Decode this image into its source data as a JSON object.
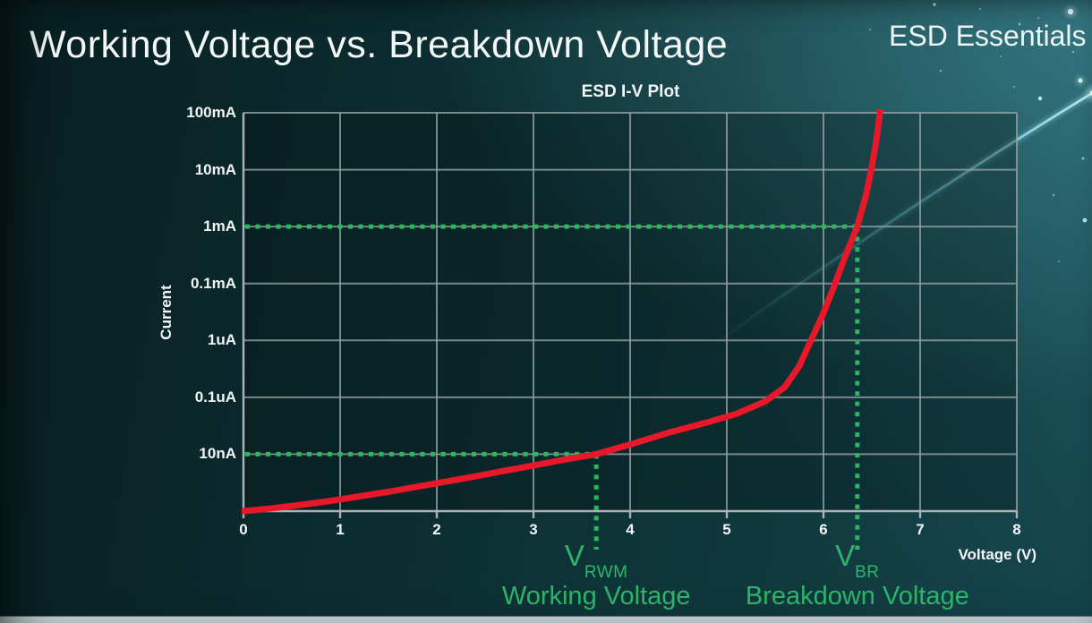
{
  "page": {
    "title": "Working Voltage vs. Breakdown Voltage",
    "brand": "ESD Essentials"
  },
  "colors": {
    "background_teal": "#0f3539",
    "accent_red": "#e8182b",
    "guide_green": "#29b85c",
    "annotation_text_green": "#2eb56a",
    "grid_gray": "#95a1a2",
    "axis_gray": "#aab4b5",
    "swoosh_cyan": "#6fe0ef",
    "text_white": "#f2f6f6",
    "bottom_bar_gray": "#c6d1d3"
  },
  "chart_data": {
    "type": "line",
    "title": "ESD I-V Plot",
    "xlabel": "Voltage (V)",
    "ylabel": "Current",
    "xlim": [
      0,
      8
    ],
    "x_ticks": [
      "0",
      "1",
      "2",
      "3",
      "4",
      "5",
      "6",
      "7",
      "8"
    ],
    "y_ticks_top_to_bottom": [
      "100mA",
      "10mA",
      "1mA",
      "0.1mA",
      "1uA",
      "0.1uA",
      "10nA"
    ],
    "y_scale": "log, one labeled gridline per decade row; row 0 = bottom axis, row 7 = 100mA",
    "grid": true,
    "legend": "none",
    "series": [
      {
        "name": "ESD device I-V curve",
        "color": "#e8182b",
        "points_volts_row": [
          [
            0,
            0
          ],
          [
            0.3,
            0.05
          ],
          [
            0.6,
            0.11
          ],
          [
            0.9,
            0.18
          ],
          [
            1.2,
            0.26
          ],
          [
            1.5,
            0.34
          ],
          [
            1.8,
            0.43
          ],
          [
            2.1,
            0.52
          ],
          [
            2.4,
            0.61
          ],
          [
            2.7,
            0.71
          ],
          [
            3.0,
            0.8
          ],
          [
            3.3,
            0.9
          ],
          [
            3.65,
            1.0
          ],
          [
            4.0,
            1.17
          ],
          [
            4.4,
            1.38
          ],
          [
            4.8,
            1.56
          ],
          [
            5.1,
            1.71
          ],
          [
            5.4,
            1.93
          ],
          [
            5.6,
            2.18
          ],
          [
            5.75,
            2.55
          ],
          [
            5.87,
            3.0
          ],
          [
            6.0,
            3.48
          ],
          [
            6.12,
            4.0
          ],
          [
            6.23,
            4.5
          ],
          [
            6.35,
            5.0
          ],
          [
            6.44,
            5.55
          ],
          [
            6.5,
            6.05
          ],
          [
            6.55,
            6.55
          ],
          [
            6.59,
            7.1
          ]
        ]
      }
    ],
    "annotations": [
      {
        "symbol": "V",
        "subscript": "RWM",
        "caption": "Working Voltage",
        "voltage_V": 3.65,
        "current": "10nA",
        "current_row": 1
      },
      {
        "symbol": "V",
        "subscript": "BR",
        "caption": "Breakdown Voltage",
        "voltage_V": 6.35,
        "current": "1mA",
        "current_row": 5
      }
    ]
  }
}
